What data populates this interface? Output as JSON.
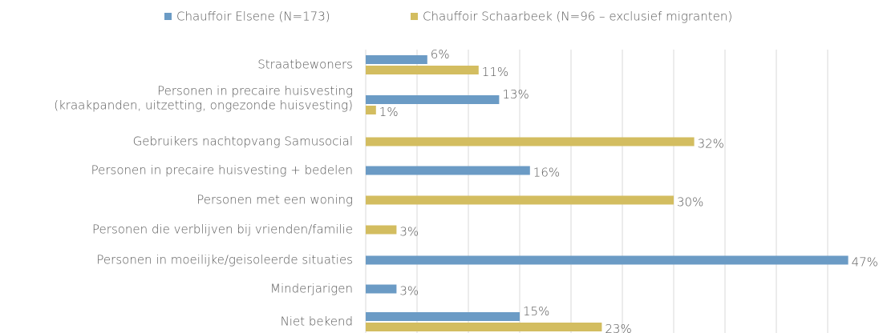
{
  "chart_data": {
    "type": "hbar",
    "categories": [
      "Straatbewoners",
      [
        "Personen in precaire huisvesting",
        "(kraakpanden, uitzetting, ongezonde huisvesting)"
      ],
      "Gebruikers nachtopvang Samusocial",
      "Personen in precaire huisvesting + bedelen",
      "Personen met een woning",
      "Personen die verblijven bij vrienden/familie",
      "Personen in moeilijke/geisoleerde situaties",
      "Minderjarigen",
      "Niet bekend"
    ],
    "series": [
      {
        "name": "Chauffoir Elsene (N=173)",
        "color": "#6b9bc5",
        "values": [
          6,
          13,
          null,
          16,
          null,
          null,
          47,
          3,
          15
        ],
        "value_labels": [
          "6%",
          "13%",
          null,
          "16%",
          null,
          null,
          "47%",
          "3%",
          "15%"
        ]
      },
      {
        "name": "Chauffoir Schaarbeek (N=96 – exclusief migranten)",
        "color": "#d3bd60",
        "values": [
          11,
          1,
          32,
          null,
          30,
          3,
          null,
          null,
          23
        ],
        "value_labels": [
          "11%",
          "1%",
          "32%",
          null,
          "30%",
          "3%",
          null,
          null,
          "23%"
        ]
      }
    ],
    "xlim": [
      0,
      50
    ],
    "xticks": [
      0,
      5,
      10,
      15,
      20,
      25,
      30,
      35,
      40,
      45
    ],
    "grid": true,
    "legend": "top"
  }
}
